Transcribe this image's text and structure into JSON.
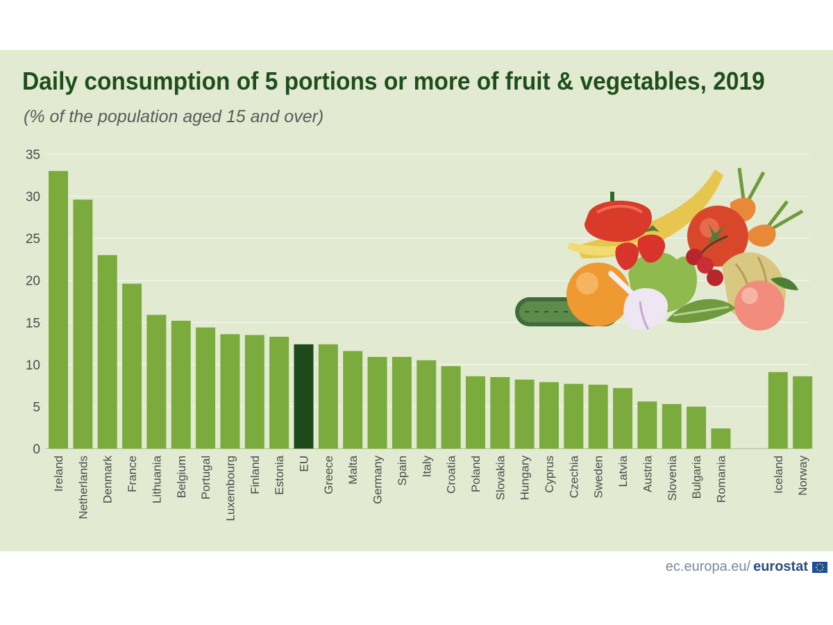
{
  "chart_data": {
    "type": "bar",
    "title": "Daily consumption of 5 portions or more of fruit & vegetables, 2019",
    "subtitle": "(% of  the population aged 15 and over)",
    "xlabel": "",
    "ylabel": "",
    "ylim": [
      0,
      35
    ],
    "yticks": [
      0,
      5,
      10,
      15,
      20,
      25,
      30,
      35
    ],
    "grid": true,
    "categories": [
      "Ireland",
      "Netherlands",
      "Denmark",
      "France",
      "Lithuania",
      "Belgium",
      "Portugal",
      "Luxembourg",
      "Finland",
      "Estonia",
      "EU",
      "Greece",
      "Malta",
      "Germany",
      "Spain",
      "Italy",
      "Croatia",
      "Poland",
      "Slovakia",
      "Hungary",
      "Cyprus",
      "Czechia",
      "Sweden",
      "Latvia",
      "Austria",
      "Slovenia",
      "Bulgaria",
      "Romania",
      "Iceland",
      "Norway"
    ],
    "values": [
      33.0,
      29.6,
      23.0,
      19.6,
      15.9,
      15.2,
      14.4,
      13.6,
      13.5,
      13.3,
      12.4,
      12.4,
      11.6,
      10.9,
      10.9,
      10.5,
      9.8,
      8.6,
      8.5,
      8.2,
      7.9,
      7.7,
      7.6,
      7.2,
      5.6,
      5.3,
      5.0,
      2.4,
      9.1,
      8.6
    ],
    "highlight": "EU",
    "group_break_before": "Iceland",
    "colors": {
      "bar": "#7aab3c",
      "bar_highlight": "#1e4a1b",
      "grid": "#f3f7ea",
      "axis_text": "#4a4a4a"
    }
  },
  "footer": {
    "site": "ec.europa.eu/",
    "brand": "eurostat"
  },
  "colors": {
    "panel": "#e2ebd1",
    "title": "#1f4e1d",
    "subtitle": "#5a5a5a",
    "footer": "#7a8a99",
    "footer_brand": "#2d4d7c"
  }
}
